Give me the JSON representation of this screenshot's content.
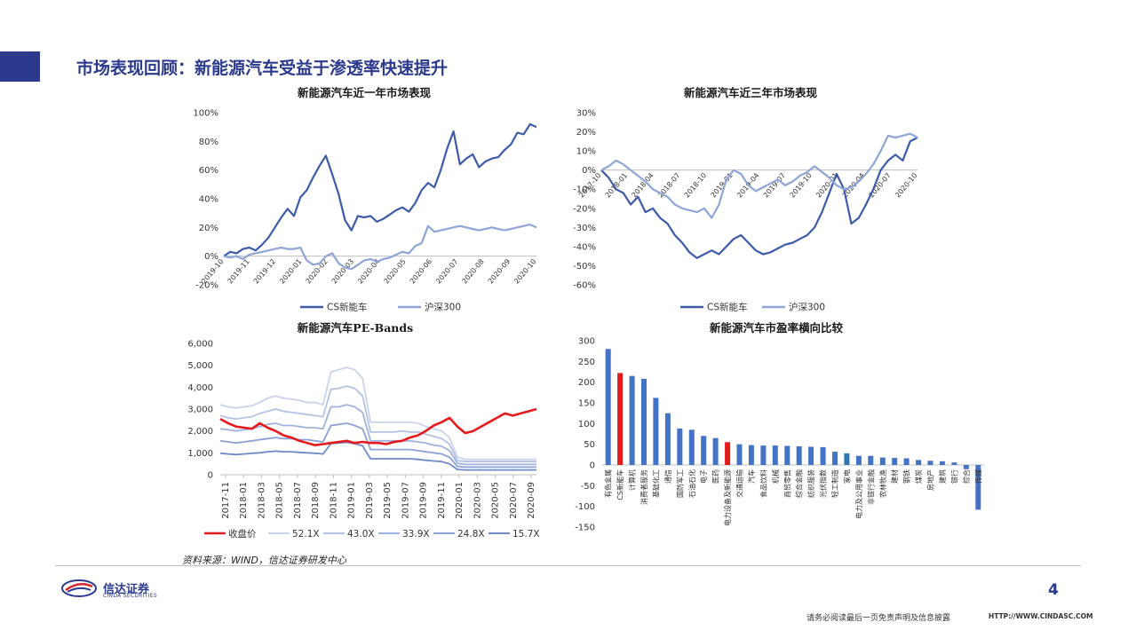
{
  "header": {
    "title": "市场表现回顾：新能源汽车受益于渗透率快速提升"
  },
  "colors": {
    "accent": "#2b3a8c",
    "cs_nev": "#3d5ba9",
    "hs300": "#8fa5d8",
    "close_price": "#e41a1c",
    "bar_default": "#4472c4",
    "bar_cs_nev": "#e41a1c",
    "bar_nev_equipment": "#e41a1c",
    "bar_highlight_teal": "#2e75b6"
  },
  "chart_data": [
    {
      "id": "one-year",
      "type": "line",
      "title": "新能源汽车近一年市场表现",
      "x_ticks": [
        "2019-10",
        "2019-11",
        "2019-12",
        "2020-01",
        "2020-02",
        "2020-03",
        "2020-04",
        "2020-05",
        "2020-06",
        "2020-07",
        "2020-08",
        "2020-09",
        "2020-10"
      ],
      "y_ticks": [
        "100%",
        "80%",
        "60%",
        "40%",
        "20%",
        "0%",
        "-20%"
      ],
      "ylim": [
        -20,
        100
      ],
      "legend": [
        "CS新能车",
        "沪深300"
      ],
      "series": [
        {
          "name": "CS新能车",
          "values": [
            0,
            3,
            2,
            5,
            6,
            4,
            8,
            13,
            20,
            27,
            33,
            28,
            41,
            46,
            55,
            63,
            70,
            57,
            43,
            25,
            18,
            28,
            27,
            28,
            24,
            26,
            29,
            32,
            34,
            31,
            37,
            46,
            51,
            48,
            60,
            75,
            87,
            64,
            68,
            71,
            62,
            66,
            68,
            69,
            74,
            78,
            86,
            85,
            92,
            90
          ]
        },
        {
          "name": "沪深300",
          "values": [
            0,
            -1,
            0,
            -2,
            1,
            2,
            3,
            4,
            5,
            6,
            5,
            5,
            6,
            -3,
            -6,
            -5,
            0,
            2,
            -5,
            -8,
            -9,
            -6,
            -3,
            -2,
            -4,
            -2,
            -1,
            1,
            3,
            2,
            7,
            9,
            21,
            17,
            18,
            19,
            20,
            21,
            20,
            19,
            18,
            19,
            20,
            19,
            18,
            19,
            20,
            21,
            22,
            20
          ]
        }
      ]
    },
    {
      "id": "three-year",
      "type": "line",
      "title": "新能源汽车近三年市场表现",
      "x_ticks": [
        "2017-10",
        "2018-01",
        "2018-04",
        "2018-07",
        "2018-10",
        "2019-01",
        "2019-04",
        "2019-07",
        "2019-10",
        "2020-01",
        "2020-04",
        "2020-07",
        "2020-10"
      ],
      "y_ticks": [
        "30%",
        "20%",
        "10%",
        "0%",
        "-10%",
        "-20%",
        "-30%",
        "-40%",
        "-50%",
        "-60%"
      ],
      "ylim": [
        -60,
        30
      ],
      "legend": [
        "CS新能车",
        "沪深300"
      ],
      "series": [
        {
          "name": "CS新能车",
          "values": [
            0,
            -4,
            -10,
            -12,
            -18,
            -14,
            -22,
            -20,
            -25,
            -28,
            -34,
            -38,
            -43,
            -46,
            -44,
            -42,
            -44,
            -40,
            -36,
            -34,
            -38,
            -42,
            -44,
            -43,
            -41,
            -39,
            -38,
            -36,
            -34,
            -30,
            -22,
            -12,
            -2,
            -10,
            -28,
            -25,
            -18,
            -10,
            0,
            5,
            8,
            5,
            15,
            17
          ]
        },
        {
          "name": "沪深300",
          "values": [
            0,
            2,
            5,
            3,
            0,
            -3,
            -6,
            -10,
            -12,
            -14,
            -18,
            -20,
            -21,
            -22,
            -20,
            -25,
            -18,
            -5,
            0,
            -2,
            -8,
            -11,
            -9,
            -7,
            -5,
            -8,
            -6,
            -3,
            -1,
            2,
            -1,
            -4,
            -8,
            -10,
            -9,
            -6,
            -2,
            3,
            10,
            18,
            17,
            18,
            19,
            17
          ]
        }
      ]
    },
    {
      "id": "pe-bands",
      "type": "line",
      "title": "新能源汽车PE-Bands",
      "x_ticks": [
        "2017-11",
        "2018-01",
        "2018-03",
        "2018-05",
        "2018-07",
        "2018-09",
        "2018-11",
        "2019-01",
        "2019-03",
        "2019-05",
        "2019-07",
        "2019-09",
        "2019-11",
        "2020-01",
        "2020-03",
        "2020-05",
        "2020-07",
        "2020-09"
      ],
      "y_ticks": [
        "6,000",
        "5,000",
        "4,000",
        "3,000",
        "2,000",
        "1,000",
        "0"
      ],
      "ylim": [
        0,
        6000
      ],
      "legend": [
        "收盘价",
        "52.1X",
        "43.0X",
        "33.9X",
        "24.8X",
        "15.7X"
      ],
      "series": [
        {
          "name": "收盘价",
          "values": [
            2550,
            2350,
            2200,
            2150,
            2100,
            2350,
            2150,
            2000,
            1800,
            1700,
            1550,
            1450,
            1350,
            1400,
            1450,
            1500,
            1550,
            1450,
            1500,
            1450,
            1450,
            1400,
            1500,
            1550,
            1700,
            1800,
            2000,
            2250,
            2400,
            2600,
            2200,
            1900,
            2000,
            2200,
            2400,
            2600,
            2800,
            2700,
            2800,
            2900,
            3000
          ]
        },
        {
          "name": "52.1X",
          "values": [
            3200,
            3100,
            3050,
            3100,
            3150,
            3300,
            3500,
            3600,
            3500,
            3450,
            3400,
            3300,
            3300,
            3200,
            4700,
            4800,
            4900,
            4800,
            4400,
            2400,
            2400,
            2400,
            2400,
            2400,
            2400,
            2350,
            2200,
            2100,
            2000,
            1700,
            800,
            700,
            700,
            700,
            700,
            700,
            700,
            700,
            700,
            700,
            700
          ]
        },
        {
          "name": "43.0X",
          "values": [
            2700,
            2600,
            2550,
            2600,
            2650,
            2800,
            2900,
            3000,
            2900,
            2850,
            2800,
            2750,
            2700,
            2650,
            3900,
            3950,
            4050,
            3950,
            3600,
            1950,
            1950,
            1950,
            1950,
            2000,
            1950,
            1950,
            1850,
            1750,
            1650,
            1400,
            650,
            600,
            600,
            600,
            600,
            600,
            600,
            600,
            600,
            600,
            600
          ]
        },
        {
          "name": "33.9X",
          "values": [
            2100,
            2050,
            2000,
            2050,
            2100,
            2200,
            2300,
            2350,
            2250,
            2250,
            2200,
            2150,
            2150,
            2100,
            3100,
            3100,
            3200,
            3100,
            2850,
            1550,
            1550,
            1550,
            1550,
            1550,
            1550,
            1500,
            1450,
            1350,
            1300,
            1100,
            520,
            470,
            470,
            470,
            470,
            470,
            470,
            470,
            470,
            470,
            470
          ]
        },
        {
          "name": "24.8X",
          "values": [
            1550,
            1500,
            1450,
            1500,
            1550,
            1600,
            1650,
            1700,
            1650,
            1650,
            1600,
            1600,
            1550,
            1500,
            2250,
            2300,
            2350,
            2250,
            2100,
            1150,
            1150,
            1150,
            1150,
            1150,
            1150,
            1100,
            1050,
            1000,
            950,
            800,
            380,
            350,
            350,
            350,
            350,
            350,
            350,
            350,
            350,
            350,
            350
          ]
        },
        {
          "name": "15.7X",
          "values": [
            980,
            950,
            920,
            950,
            980,
            1000,
            1050,
            1080,
            1050,
            1050,
            1020,
            1000,
            980,
            950,
            1420,
            1450,
            1480,
            1420,
            1320,
            730,
            730,
            730,
            730,
            730,
            730,
            700,
            660,
            630,
            600,
            500,
            240,
            220,
            220,
            220,
            220,
            220,
            220,
            220,
            220,
            220,
            220
          ]
        }
      ]
    },
    {
      "id": "pe-compare",
      "type": "bar",
      "title": "新能源汽车市盈率横向比较",
      "y_ticks": [
        "300",
        "250",
        "200",
        "150",
        "100",
        "50",
        "0",
        "-50",
        "-100",
        "-150"
      ],
      "ylim": [
        -150,
        300
      ],
      "categories": [
        "有色金属",
        "CS新能车",
        "计算机",
        "消费者服务",
        "基础化工",
        "通信",
        "国防军工",
        "石油石化",
        "电子",
        "医药",
        "电力设备及新能源",
        "交通运输",
        "汽车",
        "食品饮料",
        "机械",
        "商贸零售",
        "综合金融",
        "纺织服装",
        "光伏指数",
        "轻工制造",
        "家电",
        "电力及公用事业",
        "非银行金融",
        "农林牧渔",
        "建材",
        "钢铁",
        "煤炭",
        "房地产",
        "建筑",
        "银行",
        "综合",
        "传媒"
      ],
      "values": [
        280,
        222,
        215,
        208,
        162,
        125,
        88,
        85,
        70,
        65,
        55,
        50,
        48,
        47,
        47,
        46,
        45,
        44,
        43,
        32,
        28,
        22,
        22,
        18,
        17,
        16,
        12,
        10,
        9,
        6,
        -10,
        -108
      ],
      "highlight": {
        "1": "bar_cs_nev",
        "10": "bar_nev_equipment",
        "20": "bar_highlight_teal"
      }
    }
  ],
  "source": "资料来源：WIND，信达证券研发中心",
  "footer": {
    "logo_cn": "信达证券",
    "logo_en": "CINDA SECURITIES",
    "page_number": "4",
    "disclaimer": "请务必阅读最后一页免责声明及信息披露",
    "website": "HTTP://WWW.CINDASC.COM"
  }
}
